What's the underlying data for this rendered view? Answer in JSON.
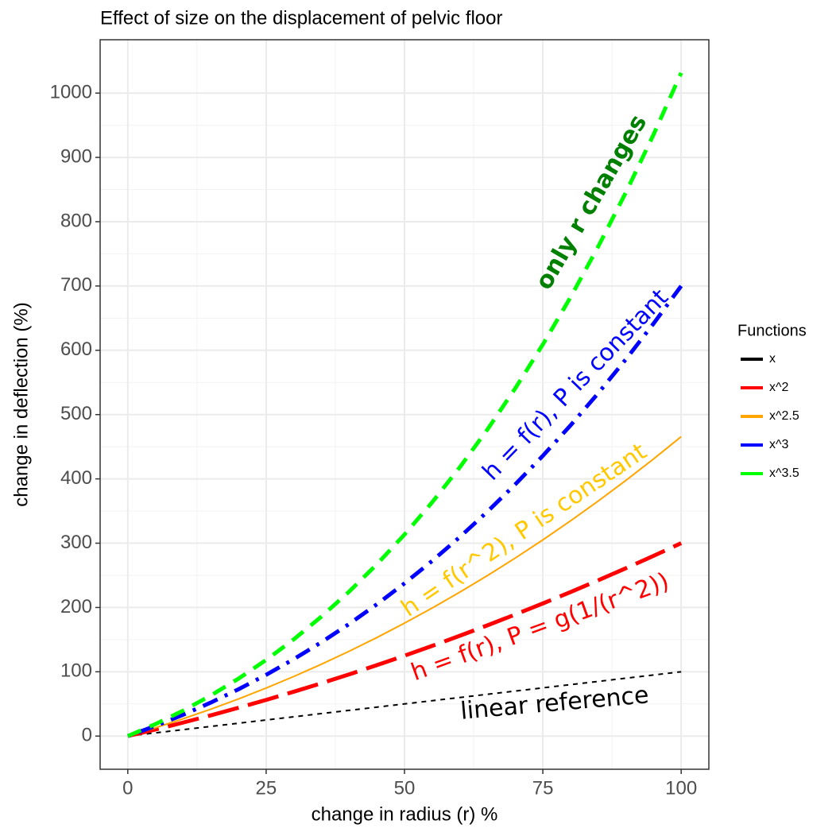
{
  "chart_data": {
    "type": "line",
    "title": "Effect of size on the displacement of pelvic floor",
    "x_label": "change in radius (r) %",
    "y_label": "change in deflection (%)",
    "legend_title": "Functions",
    "legend_position": "right",
    "grid": true,
    "x": [
      0,
      5,
      10,
      15,
      20,
      25,
      30,
      35,
      40,
      45,
      50,
      55,
      60,
      65,
      70,
      75,
      80,
      85,
      90,
      95,
      100
    ],
    "series": [
      {
        "name": "x",
        "color": "#000000",
        "linetype": "dashed",
        "values": [
          0,
          5,
          10,
          15,
          20,
          25,
          30,
          35,
          40,
          45,
          50,
          55,
          60,
          65,
          70,
          75,
          80,
          85,
          90,
          95,
          100
        ]
      },
      {
        "name": "x^2",
        "color": "#ff0000",
        "linetype": "longdash",
        "values": [
          0,
          10.25,
          21,
          32.25,
          44,
          56.25,
          69,
          82.25,
          96,
          110.25,
          125,
          140.25,
          156,
          172.25,
          189,
          206.25,
          224,
          242.25,
          261,
          280.25,
          300
        ]
      },
      {
        "name": "x^2.5",
        "color": "#ffa500",
        "linetype": "solid",
        "values": [
          0,
          13,
          26.9,
          41.8,
          57.7,
          74.7,
          92.7,
          111.8,
          131.9,
          153.2,
          175.6,
          199.1,
          223.8,
          249.7,
          276.8,
          305.1,
          334.7,
          365.5,
          397.6,
          431,
          465.7
        ]
      },
      {
        "name": "x^3",
        "color": "#0000ff",
        "linetype": "dotdash",
        "values": [
          0,
          15.8,
          33.1,
          52.1,
          72.8,
          95.3,
          119.7,
          146,
          174.4,
          204.9,
          237.5,
          272.4,
          309.6,
          349.2,
          391.3,
          435.9,
          483.2,
          533.2,
          585.9,
          641.5,
          700
        ]
      },
      {
        "name": "x^3.5",
        "color": "#00ff00",
        "linetype": "dashed-thick",
        "values": [
          0,
          18.6,
          39.6,
          63.1,
          89.3,
          118.4,
          150.5,
          185.9,
          224.7,
          267.1,
          313.4,
          363.6,
          418.1,
          477,
          540.6,
          609,
          682.4,
          761.2,
          845.4,
          935.4,
          1031.4
        ]
      }
    ],
    "annotations": [
      {
        "text": "only r changes",
        "color": "#008000"
      },
      {
        "text": "h = f(r), P is constant",
        "color": "#0000ff"
      },
      {
        "text": "h = f(r^2), P is constant",
        "color": "#ffc800"
      },
      {
        "text": "h = f(r), P = g(1/(r^2))",
        "color": "#ff0000"
      },
      {
        "text": "linear reference",
        "color": "#000000"
      }
    ],
    "xlim": [
      -5,
      105
    ],
    "xticks": [
      0,
      25,
      50,
      75,
      100
    ],
    "ylim": [
      -51.6,
      1083
    ],
    "yticks": [
      0,
      100,
      200,
      300,
      400,
      500,
      600,
      700,
      800,
      900,
      1000
    ]
  }
}
